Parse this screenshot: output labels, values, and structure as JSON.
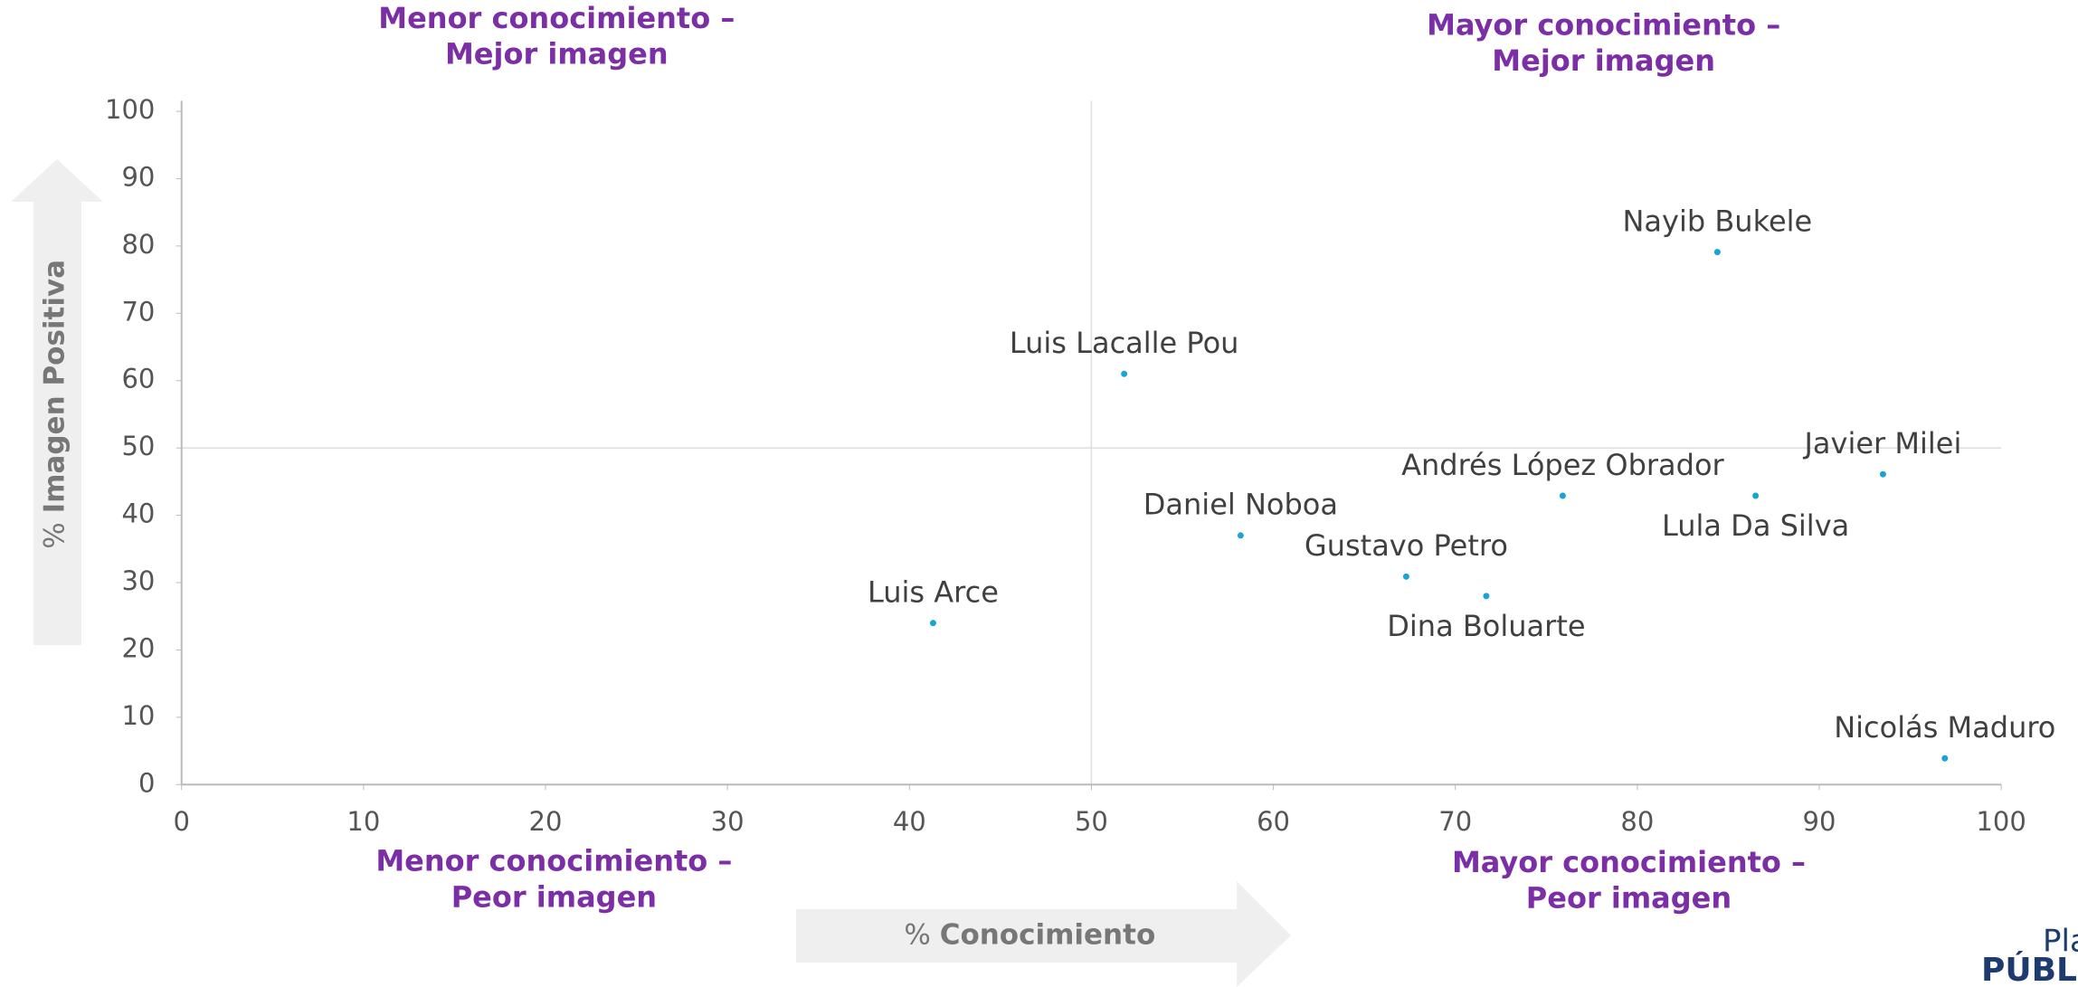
{
  "chart_data": {
    "type": "scatter",
    "quadrant_labels": [
      [
        "Menor conocimiento –",
        "Mejor imagen"
      ],
      [
        "Mayor conocimiento –",
        "Mejor imagen"
      ],
      [
        "Menor conocimiento –",
        "Peor imagen"
      ],
      [
        "Mayor conocimiento –",
        "Peor imagen"
      ]
    ],
    "xlabel_parts": [
      "%",
      "Conocimiento"
    ],
    "ylabel_parts": [
      "%",
      "Imagen Positiva"
    ],
    "labels": [
      "Nayib Bukele",
      "Luis Lacalle Pou",
      "Javier Milei",
      "Andrés López Obrador",
      "Lula Da Silva",
      "Daniel Noboa",
      "Gustavo Petro",
      "Dina Boluarte",
      "Luis Arce",
      "Nicolás Maduro"
    ],
    "x": [
      84.4,
      51.8,
      93.5,
      75.9,
      86.5,
      58.2,
      67.3,
      71.7,
      41.3,
      96.9
    ],
    "values": [
      79.1,
      61.0,
      46.1,
      42.9,
      42.9,
      37.0,
      30.9,
      28.0,
      24.0,
      3.9
    ],
    "color": "#1aa3d9",
    "xlim": [
      0,
      100
    ],
    "xticks": [
      0,
      10,
      20,
      30,
      40,
      50,
      60,
      70,
      80,
      90,
      100
    ],
    "ylim": [
      0,
      100
    ],
    "yticks": [
      0,
      10,
      20,
      30,
      40,
      50,
      60,
      70,
      80,
      90,
      100
    ],
    "quadrant_lines": {
      "x": 50,
      "y": 50
    },
    "logo": [
      "Plaza",
      "PÚBLICA"
    ]
  }
}
